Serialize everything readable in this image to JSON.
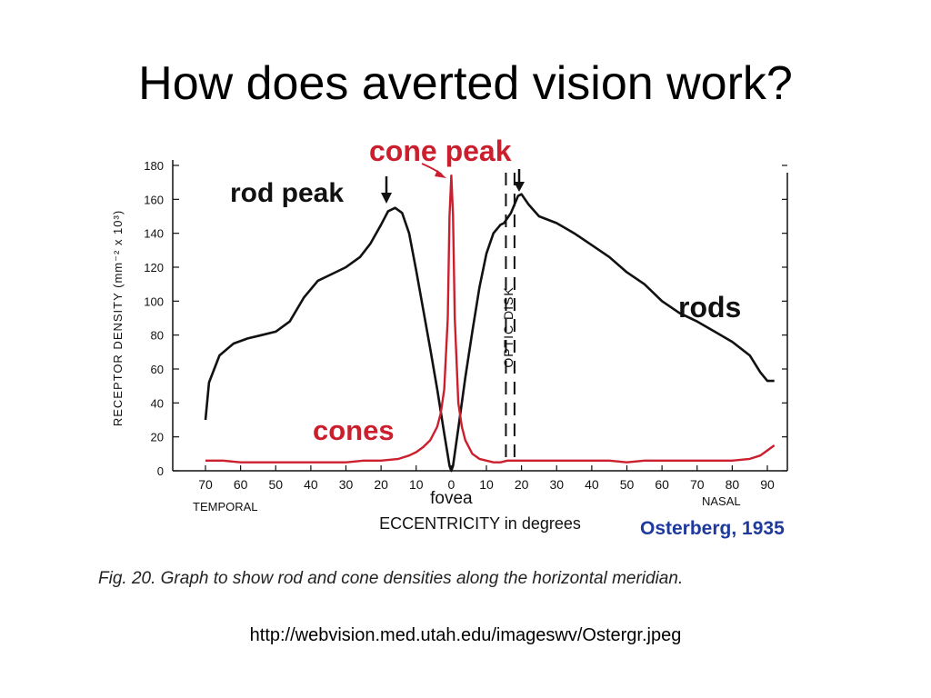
{
  "slide": {
    "title": "How does averted vision work?",
    "source_url": "http://webvision.med.utah.edu/imageswv/Ostergr.jpeg"
  },
  "figure": {
    "caption": "Fig. 20. Graph to show rod and cone densities along the horizontal meridian.",
    "credit": "Osterberg, 1935"
  },
  "colors": {
    "rods": "#111111",
    "cones": "#cc1f2e",
    "credit": "#1f3a9c"
  },
  "chart_data": {
    "type": "line",
    "ylabel": "RECEPTOR DENSITY (mm⁻² x 10³)",
    "xlabel": "ECCENTRICITY in degrees",
    "ylim": [
      0,
      180
    ],
    "xlim": [
      -70,
      90
    ],
    "y_ticks": [
      0,
      20,
      40,
      60,
      80,
      100,
      120,
      140,
      160,
      180
    ],
    "x_ticks": [
      {
        "value": -70,
        "label": "70"
      },
      {
        "value": -60,
        "label": "60"
      },
      {
        "value": -50,
        "label": "50"
      },
      {
        "value": -40,
        "label": "40"
      },
      {
        "value": -30,
        "label": "30"
      },
      {
        "value": -20,
        "label": "20"
      },
      {
        "value": -10,
        "label": "10"
      },
      {
        "value": 0,
        "label": "0"
      },
      {
        "value": 10,
        "label": "10"
      },
      {
        "value": 20,
        "label": "20"
      },
      {
        "value": 30,
        "label": "30"
      },
      {
        "value": 40,
        "label": "40"
      },
      {
        "value": 50,
        "label": "50"
      },
      {
        "value": 60,
        "label": "60"
      },
      {
        "value": 70,
        "label": "70"
      },
      {
        "value": 80,
        "label": "80"
      },
      {
        "value": 90,
        "label": "90"
      }
    ],
    "x_side_labels": {
      "left": "TEMPORAL",
      "center": "fovea",
      "right": "NASAL"
    },
    "series": [
      {
        "name": "rods",
        "x": [
          -70,
          -69,
          -66,
          -62,
          -58,
          -54,
          -50,
          -46,
          -42,
          -38,
          -34,
          -30,
          -26,
          -23,
          -20,
          -18,
          -16,
          -14,
          -12,
          -10,
          -8,
          -6,
          -4,
          -2,
          -0.5,
          0,
          0.5,
          2,
          4,
          6,
          8,
          10,
          12,
          14,
          15,
          17,
          18,
          19,
          20,
          22,
          25,
          30,
          35,
          40,
          45,
          50,
          55,
          60,
          65,
          70,
          75,
          80,
          85,
          88,
          90,
          92
        ],
        "y": [
          30,
          52,
          68,
          75,
          78,
          80,
          82,
          88,
          102,
          112,
          116,
          120,
          126,
          134,
          145,
          153,
          155,
          152,
          140,
          118,
          95,
          72,
          48,
          22,
          3,
          0,
          3,
          25,
          55,
          82,
          108,
          128,
          140,
          145,
          146,
          152,
          157,
          162,
          163,
          157,
          150,
          146,
          140,
          133,
          126,
          117,
          110,
          100,
          93,
          88,
          82,
          76,
          68,
          58,
          53,
          53
        ]
      },
      {
        "name": "cones",
        "x": [
          -70,
          -65,
          -60,
          -55,
          -50,
          -45,
          -40,
          -35,
          -30,
          -25,
          -20,
          -15,
          -12,
          -10,
          -8,
          -6,
          -4,
          -3,
          -2,
          -1,
          -0.5,
          0,
          0.5,
          1,
          2,
          3,
          4,
          6,
          8,
          10,
          12,
          14,
          16,
          18,
          20,
          25,
          30,
          35,
          40,
          45,
          50,
          55,
          60,
          65,
          70,
          75,
          80,
          85,
          88,
          90,
          92
        ],
        "y": [
          6,
          6,
          5,
          5,
          5,
          5,
          5,
          5,
          5,
          6,
          6,
          7,
          9,
          11,
          14,
          18,
          26,
          34,
          48,
          90,
          150,
          174,
          150,
          90,
          40,
          26,
          18,
          10,
          7,
          6,
          5,
          5,
          6,
          6,
          6,
          6,
          6,
          6,
          6,
          6,
          5,
          6,
          6,
          6,
          6,
          6,
          6,
          7,
          9,
          12,
          15
        ]
      }
    ],
    "annotations": [
      {
        "text": "rod peak",
        "points_to": {
          "x": -15,
          "y": 155
        },
        "color": "#111111"
      },
      {
        "text": "cone peak",
        "points_to": {
          "x": 0,
          "y": 174
        },
        "color": "#cc1f2e"
      },
      {
        "text": "rods",
        "color": "#111111"
      },
      {
        "text": "cones",
        "color": "#cc1f2e"
      }
    ],
    "optic_disk": {
      "label": "OPTIC DISK",
      "x_range": [
        14,
        18
      ],
      "arrow_at": {
        "x": 19,
        "y": 163
      }
    }
  }
}
